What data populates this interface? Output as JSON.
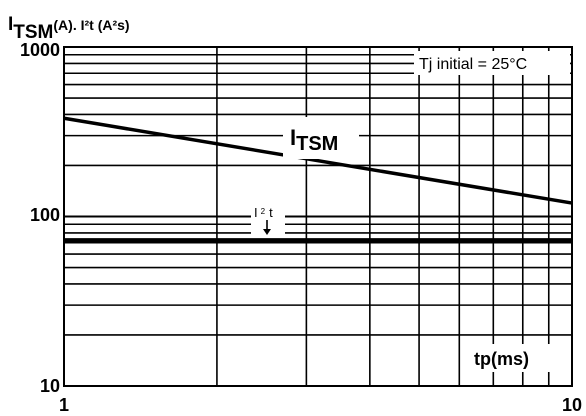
{
  "chart_data": {
    "type": "line",
    "x_scale": "log",
    "y_scale": "log",
    "xlim": [
      1,
      10
    ],
    "ylim": [
      10,
      1000
    ],
    "grid": true,
    "ylabel": {
      "prefix": "I",
      "subscript": "TSM",
      "suffix": "(A). I²t (A²s)"
    },
    "xlabel": "tp(ms)",
    "x_ticks": [
      {
        "value": 1,
        "label": "1"
      },
      {
        "value": 10,
        "label": "10"
      }
    ],
    "y_ticks": [
      {
        "value": 10,
        "label": "10"
      },
      {
        "value": 100,
        "label": "100"
      },
      {
        "value": 1000,
        "label": "1000"
      }
    ],
    "annotation": "Tj initial  =  25°C",
    "series": [
      {
        "name_prefix": "I",
        "name_sub": "TSM",
        "x": [
          1,
          10
        ],
        "y": [
          380,
          120
        ],
        "color": "#000000"
      },
      {
        "name_prefix": "I",
        "name_sup": "2",
        "name_suffix": "t",
        "x": [
          1,
          10
        ],
        "y": [
          72,
          72
        ],
        "color": "#000000"
      }
    ]
  }
}
